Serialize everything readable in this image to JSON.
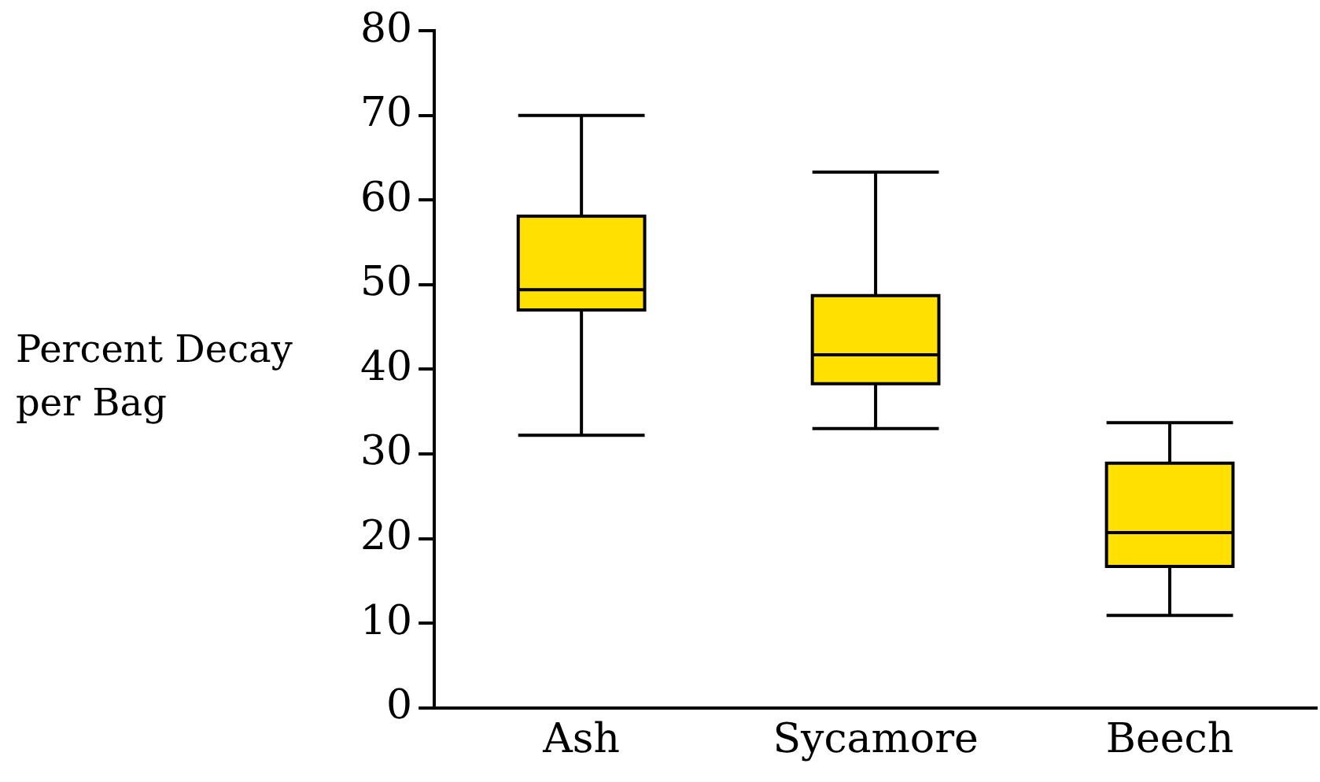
{
  "chart_data": {
    "type": "box",
    "ylabel": "Percent Decay per Bag",
    "categories": [
      "Ash",
      "Sycamore",
      "Beech"
    ],
    "color": "#ffe000",
    "boxes": [
      {
        "low": 32.2,
        "q1": 47,
        "median": 49.4,
        "q3": 58.1,
        "high": 70
      },
      {
        "low": 33,
        "q1": 38.3,
        "median": 41.7,
        "q3": 48.7,
        "high": 63.3
      },
      {
        "low": 10.9,
        "q1": 16.7,
        "median": 20.7,
        "q3": 28.9,
        "high": 33.7
      }
    ],
    "ylim": [
      0,
      80
    ],
    "yticks": [
      0,
      10,
      20,
      30,
      40,
      50,
      60,
      70,
      80
    ]
  }
}
